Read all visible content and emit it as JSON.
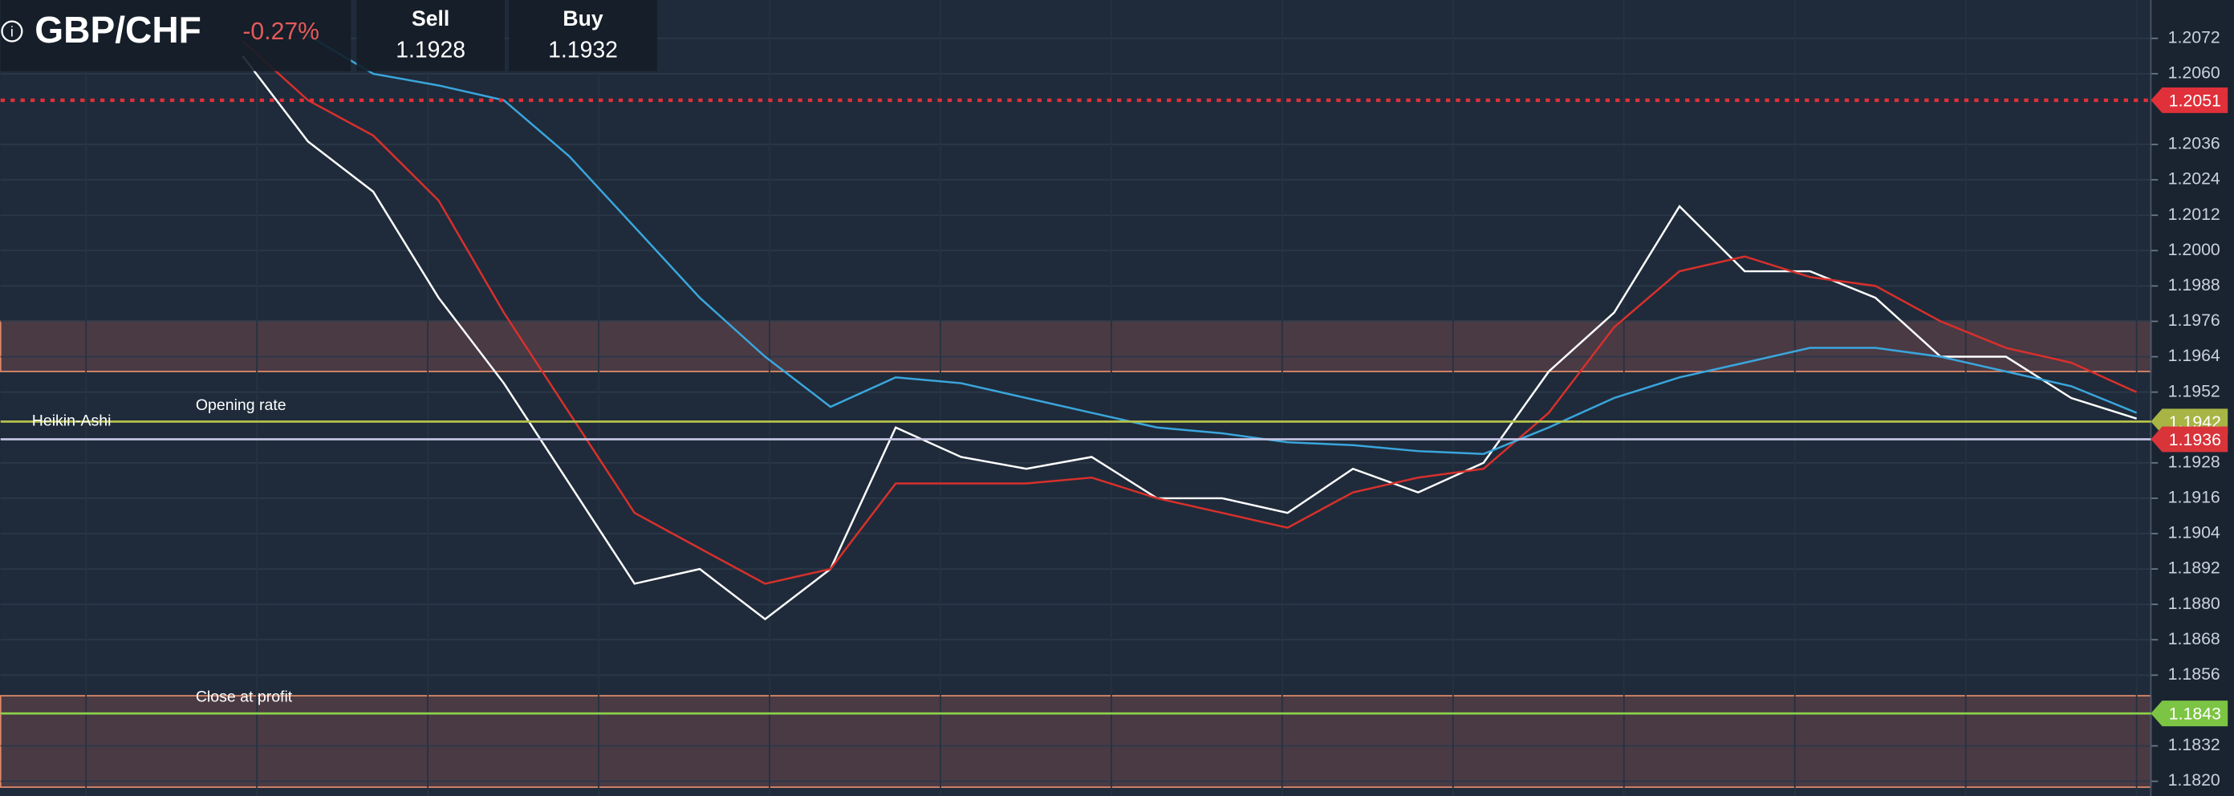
{
  "header": {
    "symbol": "GBP/CHF",
    "change": "-0.27%",
    "sell_label": "Sell",
    "sell": "1.1928",
    "buy_label": "Buy",
    "buy": "1.1932"
  },
  "chart_data": {
    "type": "line",
    "indicator": "Heikin-Ashi",
    "ylim": [
      1.1815,
      1.2085
    ],
    "yticks": [
      1.2072,
      {
        "value": 1.206,
        "label": "1.2060"
      },
      1.2036,
      1.2024,
      1.2012,
      {
        "value": 1.2,
        "label": "1.2000"
      },
      1.1988,
      1.1976,
      1.1964,
      1.1952,
      1.1928,
      1.1916,
      1.1904,
      1.1892,
      {
        "value": 1.188,
        "label": "1.1880"
      },
      1.1868,
      1.1856,
      1.1832,
      {
        "value": 1.182,
        "label": "1.1820"
      }
    ],
    "grid": true,
    "series": [
      {
        "color": "#ffffff",
        "values": [
          1.2066,
          1.2037,
          1.202,
          1.1984,
          1.1955,
          1.1921,
          1.1887,
          1.1892,
          1.1875,
          1.1892,
          1.194,
          1.193,
          1.1926,
          1.193,
          1.1916,
          1.1916,
          1.1911,
          1.1926,
          1.1918,
          1.1928,
          1.1959,
          1.1979,
          1.2015,
          1.1993,
          1.1993,
          1.1984,
          1.1964,
          1.1964,
          1.195,
          1.1943
        ]
      },
      {
        "color": "#d9302c",
        "values": [
          1.2071,
          1.2051,
          1.2039,
          1.2017,
          1.1979,
          1.1945,
          1.1911,
          1.1899,
          1.1887,
          1.1892,
          1.1921,
          1.1921,
          1.1921,
          1.1923,
          1.1916,
          1.1911,
          1.1906,
          1.1918,
          1.1923,
          1.1926,
          1.1945,
          1.1974,
          1.1993,
          1.1998,
          1.1991,
          1.1988,
          1.1976,
          1.1967,
          1.1962,
          1.1952
        ]
      },
      {
        "color": "#3aa6dd",
        "values": [
          null,
          1.2073,
          1.206,
          1.2056,
          1.2051,
          1.2032,
          1.2008,
          1.1984,
          1.1964,
          1.1947,
          1.1957,
          1.1955,
          1.195,
          1.1945,
          1.194,
          1.1938,
          1.1935,
          1.1934,
          1.1932,
          1.1931,
          1.194,
          1.195,
          1.1957,
          1.1962,
          1.1967,
          1.1967,
          1.1964,
          1.1959,
          1.1954,
          1.1945
        ]
      }
    ],
    "levels": [
      {
        "value": 1.2051,
        "color": "#e0303a",
        "label_color": "#e0303a",
        "dashed": true
      },
      {
        "value": 1.1942,
        "name": "Opening rate",
        "color": "#b5c24a",
        "label_color": "#a8b545"
      },
      {
        "value": 1.1936,
        "color": "#c8c8e8",
        "label_color": "#d8343a"
      },
      {
        "value": 1.1843,
        "name": "Close at profit",
        "color": "#8bd24a",
        "label_color": "#7cc443"
      }
    ],
    "zones": [
      [
        1.1976,
        1.1959
      ],
      [
        1.1849,
        1.1818
      ]
    ]
  }
}
